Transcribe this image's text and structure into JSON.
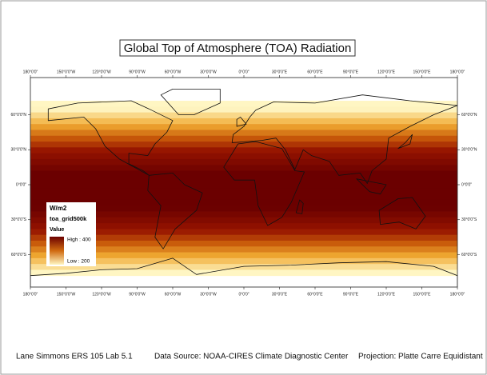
{
  "title": "Global Top of Atmosphere (TOA) Radiation",
  "graticule": {
    "longitude_labels": [
      "180°0'0\"",
      "150°0'0\"W",
      "120°0'0\"W",
      "90°0'0\"W",
      "60°0'0\"W",
      "30°0'0\"W",
      "0°0'0\"",
      "30°0'0\"E",
      "60°0'0\"E",
      "90°0'0\"E",
      "120°0'0\"E",
      "150°0'0\"E",
      "180°0'0\""
    ],
    "latitude_labels": [
      "60°0'0\"N",
      "30°0'0\"N",
      "0°0'0\"",
      "30°0'0\"S",
      "60°0'0\"S"
    ]
  },
  "legend": {
    "unit": "W/m2",
    "layer": "toa_grid500k",
    "field": "Value",
    "high": "High : 400",
    "low": "Low : 200"
  },
  "footer": {
    "author": "Lane Simmons ERS 105 Lab 5.1",
    "source": "Data Source: NOAA-CIRES Climate Diagnostic Center",
    "projection": "Projection: Platte Carre Equidistant"
  }
}
